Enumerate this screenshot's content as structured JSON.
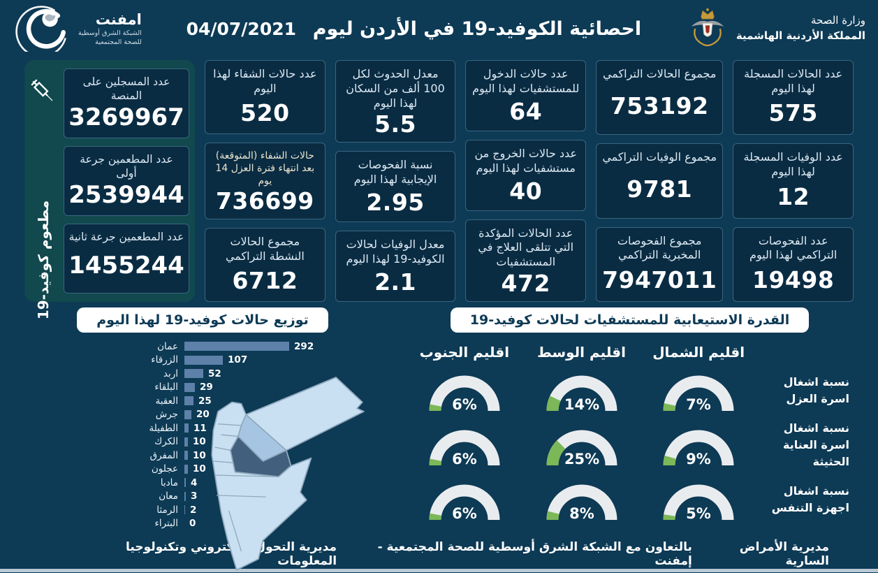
{
  "header": {
    "ministry": {
      "line1": "وزارة الصحة",
      "line2": "المملكة الأردنية الهاشمية"
    },
    "title": "احصائية الكوفيد-19 في الأردن ليوم",
    "date": "04/07/2021",
    "logo": {
      "name": "امفنت",
      "line1": "الشبكة الشرق أوسطية",
      "line2": "للصحة المجتمعية"
    }
  },
  "stats": {
    "columns": [
      {
        "cards": [
          {
            "title": "عدد الحالات المسجلة لهذا اليوم",
            "value": "575"
          },
          {
            "title": "عدد الوفيات المسجلة لهذا اليوم",
            "value": "12"
          },
          {
            "title": "عدد الفحوصات التراكمي لهذا اليوم",
            "value": "19498"
          }
        ]
      },
      {
        "cards": [
          {
            "title": "مجموع الحالات التراكمي",
            "value": "753192"
          },
          {
            "title": "مجموع الوفيات التراكمي",
            "value": "9781"
          },
          {
            "title": "مجموع الفحوصات المخبرية التراكمي",
            "value": "7947011"
          }
        ]
      },
      {
        "cards": [
          {
            "title": "عدد حالات الدخول للمستشفيات لهذا اليوم",
            "value": "64"
          },
          {
            "title": "عدد حالات الخروج من مستشفيات لهذا اليوم",
            "value": "40"
          },
          {
            "title": "عدد الحالات المؤكدة التي تتلقى العلاج في المستشفيات",
            "value": "472"
          }
        ]
      },
      {
        "cards": [
          {
            "title": "معدل الحدوث لكل 100 ألف من السكان لهذا اليوم",
            "value": "5.5"
          },
          {
            "title": "نسبة الفحوصات الإيجابية لهذا اليوم",
            "value": "2.95"
          },
          {
            "title": "معدل الوفيات لحالات الكوفيد-19 لهذا اليوم",
            "value": "2.1"
          }
        ]
      },
      {
        "cards": [
          {
            "title": "عدد حالات الشفاء لهذا اليوم",
            "value": "520"
          },
          {
            "title": "حالات الشفاء (المتوقعة) بعد انتهاء فترة العزل 14 يوم",
            "value": "736699",
            "small": true
          },
          {
            "title": "مجموع الحالات النشطة التراكمي",
            "value": "6712"
          }
        ]
      }
    ]
  },
  "vaccine_panel": {
    "side_label": "مطعوم كوفيد-19",
    "cards": [
      {
        "title": "عدد المسجلين على المنصة",
        "value": "3269967"
      },
      {
        "title": "عدد المطعمين جرعة أولى",
        "value": "2539944"
      },
      {
        "title": "عدد المطعمين جرعة ثانية",
        "value": "1455244"
      }
    ]
  },
  "chart_data": [
    {
      "type": "bar",
      "orientation": "horizontal",
      "title": "توزيع حالات كوفيد-19 لهذا اليوم",
      "categories": [
        "عمان",
        "الزرقاء",
        "اربد",
        "البلقاء",
        "العقبة",
        "جرش",
        "الطفيلة",
        "الكرك",
        "المفرق",
        "عجلون",
        "مادبا",
        "معان",
        "الرمثا",
        "البتراء"
      ],
      "values": [
        292,
        107,
        52,
        29,
        25,
        20,
        11,
        10,
        10,
        10,
        4,
        3,
        2,
        0
      ],
      "xlim": [
        0,
        292
      ],
      "bar_color": "#5d81a8",
      "value_labels": true
    },
    {
      "type": "gauge-grid",
      "title": "القدرة الاستيعابية للمستشفيات لحالات كوفيد-19",
      "regions": [
        "اقليم الشمال",
        "اقليم الوسط",
        "اقليم الجنوب"
      ],
      "rows": [
        {
          "label": "نسبة اشغال اسرة العزل",
          "values": [
            7,
            14,
            6
          ]
        },
        {
          "label": "نسبة اشغال اسرة العناية الحثيثة",
          "values": [
            9,
            25,
            6
          ]
        },
        {
          "label": "نسبة اشغال اجهزة التنفس",
          "values": [
            5,
            8,
            6
          ]
        }
      ],
      "unit": "%",
      "track_color": "#e9ecef",
      "fill_color": "#7cb857"
    }
  ],
  "footer": {
    "right": "مديرية الأمراض السارية",
    "center": "بالتعاون مع الشبكة الشرق أوسطية للصحة المجتمعية - إمفنت",
    "left": "مديرية التحول الالكتروني وتكنولوجيا المعلومات"
  },
  "colors": {
    "background": "#0d3a55",
    "card_bg": "#0a2c43",
    "card_border": "#3a657f",
    "vaccine_panel_bg": "#11494e",
    "bar": "#5d81a8",
    "gauge_track": "#e9ecef",
    "gauge_fill": "#7cb857",
    "map_light": "#c9e0f2",
    "map_medium": "#a6c5e2",
    "map_dark": "#42607e"
  }
}
